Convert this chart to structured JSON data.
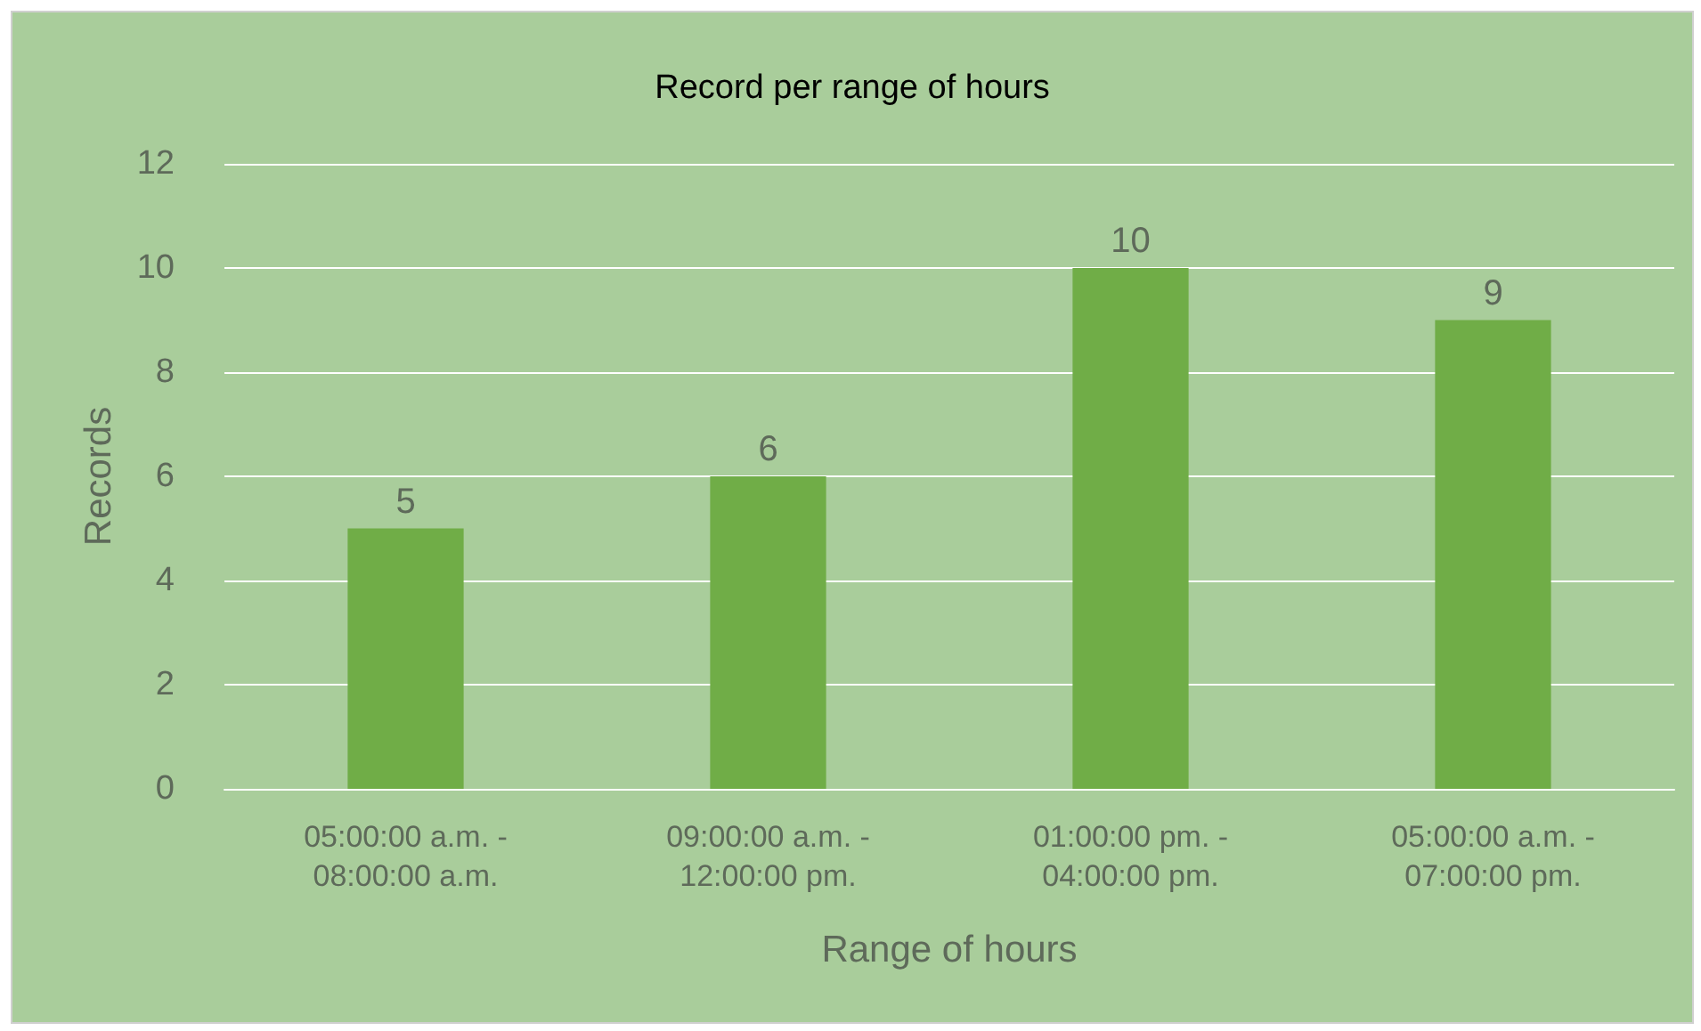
{
  "chart_data": {
    "type": "bar",
    "title": "Record per range of hours",
    "xlabel": "Range of hours",
    "ylabel": "Records",
    "categories": [
      "05:00:00 a.m. -\n08:00:00 a.m.",
      "09:00:00 a.m. -\n12:00:00 pm.",
      "01:00:00 pm. -\n04:00:00 pm.",
      "05:00:00 a.m. -\n07:00:00 pm."
    ],
    "values": [
      5,
      6,
      10,
      9
    ],
    "color": "#70ad47",
    "ylim": [
      0,
      12
    ],
    "yticks": [
      0,
      2,
      4,
      6,
      8,
      10,
      12
    ],
    "grid": "y",
    "data_labels": true
  }
}
